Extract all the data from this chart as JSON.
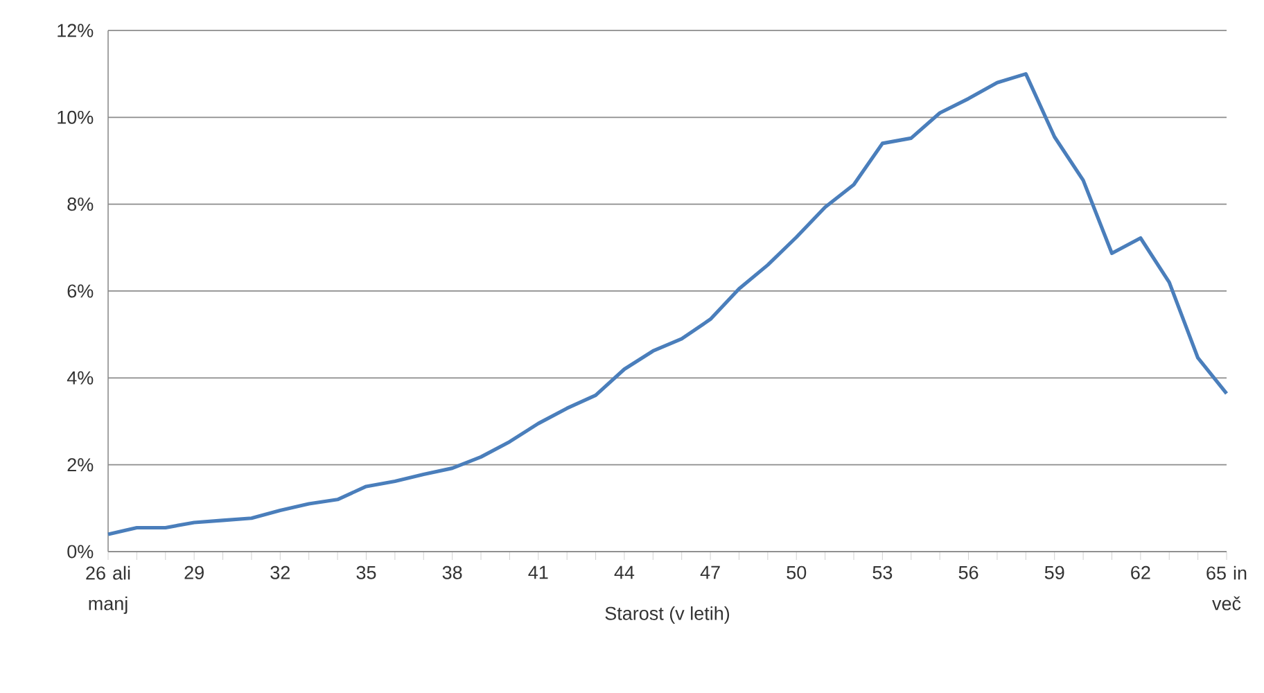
{
  "chart_data": {
    "type": "line",
    "xlabel": "Starost (v letih)",
    "categories": [
      "26 ali manj",
      null,
      null,
      "29",
      null,
      null,
      "32",
      null,
      null,
      "35",
      null,
      null,
      "38",
      null,
      null,
      "41",
      null,
      null,
      "44",
      null,
      null,
      "47",
      null,
      null,
      "50",
      null,
      null,
      "53",
      null,
      null,
      "56",
      null,
      null,
      "59",
      null,
      null,
      "62",
      null,
      null,
      "65 in več"
    ],
    "series": [
      {
        "color": "#4a7ebb",
        "values": [
          0.4,
          0.55,
          0.55,
          0.67,
          0.72,
          0.77,
          0.95,
          1.1,
          1.2,
          1.5,
          1.62,
          1.78,
          1.92,
          2.18,
          2.53,
          2.95,
          3.3,
          3.6,
          4.2,
          4.62,
          4.9,
          5.35,
          6.05,
          6.6,
          7.24,
          7.93,
          8.45,
          9.4,
          9.52,
          10.1,
          10.43,
          10.8,
          11.0,
          9.55,
          8.55,
          6.87,
          7.22,
          6.2,
          4.46,
          3.64
        ]
      }
    ],
    "ylim": [
      0,
      12
    ],
    "yticks": [
      {
        "value": 0,
        "label": "0%"
      },
      {
        "value": 2,
        "label": "2%"
      },
      {
        "value": 4,
        "label": "4%"
      },
      {
        "value": 6,
        "label": "6%"
      },
      {
        "value": 8,
        "label": "8%"
      },
      {
        "value": 10,
        "label": "10%"
      },
      {
        "value": 12,
        "label": "12%"
      }
    ],
    "grid": "y",
    "marker": "none",
    "line_style": "solid"
  }
}
